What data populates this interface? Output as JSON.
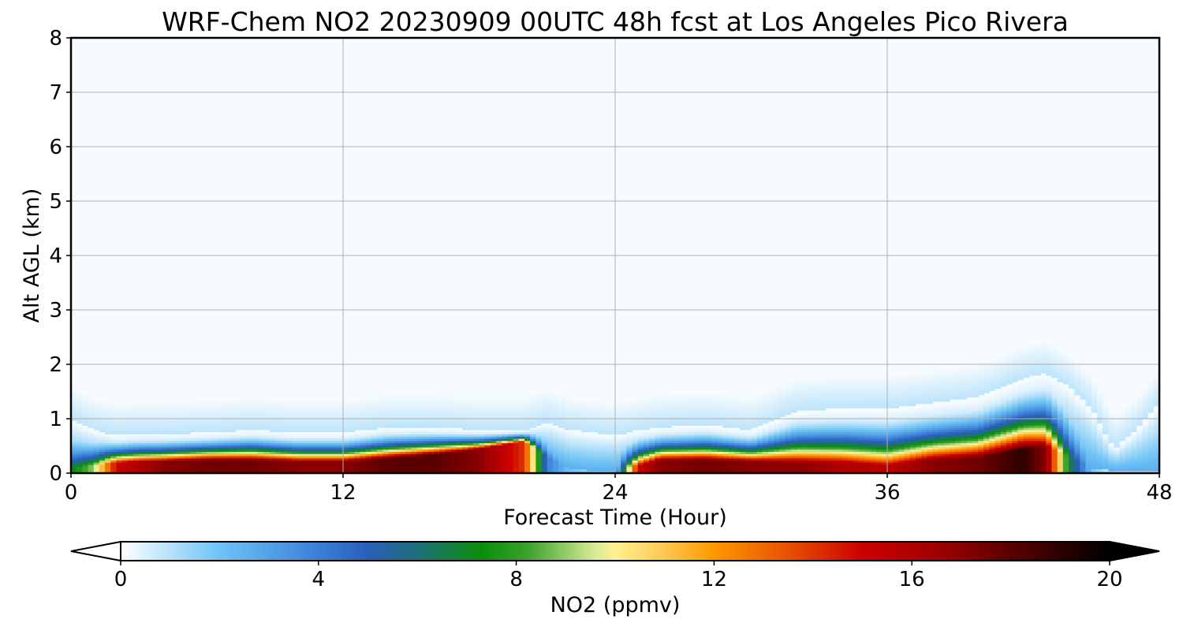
{
  "chart_data": {
    "type": "heatmap",
    "title": "WRF-Chem NO2  20230909 00UTC 48h fcst at Los Angeles Pico Rivera",
    "xlabel": "Forecast Time (Hour)",
    "ylabel": "Alt AGL (km)",
    "xlim": [
      0,
      48
    ],
    "ylim": [
      0,
      8
    ],
    "x_ticks": [
      0,
      12,
      24,
      36,
      48
    ],
    "y_ticks": [
      0,
      1,
      2,
      3,
      4,
      5,
      6,
      7,
      8
    ],
    "grid": true,
    "colorbar": {
      "label": "NO2  (ppmv)",
      "range": [
        0,
        20
      ],
      "ticks": [
        0,
        4,
        8,
        12,
        16,
        20
      ],
      "extend": "both",
      "orientation": "horizontal",
      "stops": [
        {
          "v": 0,
          "c": "#ffffff"
        },
        {
          "v": 2,
          "c": "#6ec3f5"
        },
        {
          "v": 4,
          "c": "#3b7fd8"
        },
        {
          "v": 5,
          "c": "#2a5fb8"
        },
        {
          "v": 6,
          "c": "#1f6e7a"
        },
        {
          "v": 7.3,
          "c": "#0a8f0a"
        },
        {
          "v": 8.2,
          "c": "#3aa02a"
        },
        {
          "v": 9.6,
          "c": "#d8ec98"
        },
        {
          "v": 10,
          "c": "#fff090"
        },
        {
          "v": 11,
          "c": "#ffc850"
        },
        {
          "v": 12,
          "c": "#ff9800"
        },
        {
          "v": 13.5,
          "c": "#e85000"
        },
        {
          "v": 15,
          "c": "#cc0000"
        },
        {
          "v": 16.5,
          "c": "#a00000"
        },
        {
          "v": 18,
          "c": "#5a0000"
        },
        {
          "v": 20,
          "c": "#000000"
        }
      ]
    },
    "profile": {
      "hours": [
        0,
        1,
        2,
        3,
        4,
        6,
        8,
        10,
        12,
        14,
        16,
        18,
        20,
        21,
        22,
        23,
        24,
        25,
        26,
        28,
        30,
        32,
        34,
        36,
        38,
        40,
        42,
        43,
        44,
        45,
        46,
        47,
        48
      ],
      "surface_ppmv": [
        7,
        9,
        15,
        16,
        17,
        17.5,
        17.5,
        17,
        17,
        18,
        18,
        17,
        14,
        4,
        2,
        1.5,
        1.5,
        15,
        17,
        17.5,
        17,
        17,
        16,
        15.5,
        17,
        17.5,
        19,
        17,
        7,
        2,
        0.4,
        0.3,
        0.3
      ],
      "layer_top_km": [
        1.0,
        0.8,
        0.7,
        0.72,
        0.72,
        0.75,
        0.8,
        0.75,
        0.75,
        0.85,
        0.85,
        0.8,
        0.8,
        0.95,
        0.8,
        0.75,
        0.7,
        0.8,
        0.85,
        0.9,
        0.8,
        1.15,
        1.2,
        1.2,
        1.3,
        1.4,
        1.75,
        1.85,
        1.6,
        1.2,
        0.45,
        0.8,
        1.3
      ],
      "peak_top_km": [
        0.1,
        0.15,
        0.2,
        0.22,
        0.22,
        0.25,
        0.25,
        0.22,
        0.22,
        0.28,
        0.35,
        0.45,
        0.6,
        0.3,
        0.1,
        0.05,
        0.05,
        0.15,
        0.25,
        0.25,
        0.22,
        0.2,
        0.2,
        0.15,
        0.25,
        0.3,
        0.45,
        0.5,
        0.3,
        0.1,
        0.05,
        0.05,
        0.05
      ]
    }
  }
}
